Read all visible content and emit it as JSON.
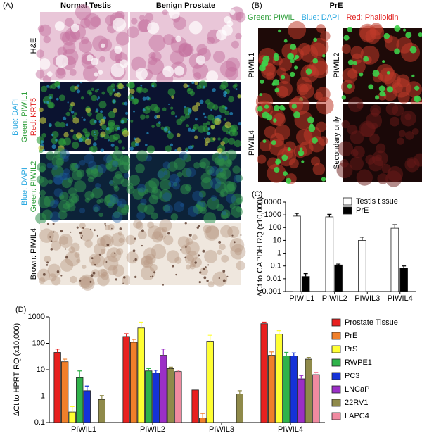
{
  "panel_labels": [
    "(A)",
    "(B)",
    "(C)",
    "(D)"
  ],
  "panel_a": {
    "columns": [
      "Normal Testis",
      "Benign Prostate"
    ],
    "rows": [
      {
        "lines": [
          "H&E"
        ],
        "colors": [
          "#000000"
        ]
      },
      {
        "lines": [
          "Blue: DAPI",
          "Green: PIWIL1",
          "Red: KRT5"
        ],
        "colors": [
          "#29a8e0",
          "#2e9e3a",
          "#e0201f"
        ]
      },
      {
        "lines": [
          "Blue: DAPI",
          "Green: PIWIL2"
        ],
        "colors": [
          "#29a8e0",
          "#2e9e3a"
        ]
      },
      {
        "lines": [
          "Brown: PIWIL4"
        ],
        "colors": [
          "#000000"
        ]
      }
    ]
  },
  "panel_b": {
    "title": "PrE",
    "stains": [
      {
        "text": "Green: PIWIL",
        "color": "#2e9e3a"
      },
      {
        "text": "Blue: DAPI",
        "color": "#29a8e0"
      },
      {
        "text": "Red: Phalloidin",
        "color": "#e0201f"
      }
    ],
    "images": [
      "PIWIL1",
      "PIWIL2",
      "PIWIL4",
      "Secondary only"
    ]
  },
  "chart_data": [
    {
      "type": "bar",
      "y_label": "ΔCt to GAPDH RQ (x10,000)",
      "log_scale": true,
      "categories": [
        "PIWIL1",
        "PIWIL2",
        "PIWIL3",
        "PIWIL4"
      ],
      "series": [
        {
          "name": "Testis tissue",
          "color": "#ffffff",
          "values": [
            800,
            700,
            10,
            90
          ],
          "errors": [
            500,
            400,
            8,
            80
          ]
        },
        {
          "name": "PrE",
          "color": "#000000",
          "values": [
            0.015,
            0.12,
            null,
            0.07
          ],
          "errors": [
            0.01,
            0.02,
            null,
            0.03
          ]
        }
      ],
      "ylim": [
        0.001,
        10000
      ],
      "yticks": [
        0.001,
        0.01,
        0.1,
        1,
        10,
        100,
        1000,
        10000
      ],
      "legend": "top-right"
    },
    {
      "type": "bar",
      "y_label": "ΔCt to HPRT RQ (x10,000)",
      "log_scale": true,
      "categories": [
        "PIWIL1",
        "PIWIL2",
        "PIWIL3",
        "PIWIL4"
      ],
      "series": [
        {
          "name": "Prostate Tissue",
          "color": "#e8201f",
          "values": [
            45,
            180,
            1.7,
            550
          ],
          "errors": [
            15,
            50,
            null,
            80
          ]
        },
        {
          "name": "PrE",
          "color": "#f07f2a",
          "values": [
            20,
            110,
            0.15,
            35
          ],
          "errors": [
            5,
            30,
            0.07,
            12
          ]
        },
        {
          "name": "PrS",
          "color": "#ffff33",
          "values": [
            0.25,
            380,
            120,
            220
          ],
          "errors": [
            0.15,
            250,
            80,
            80
          ]
        },
        {
          "name": "RWPE1",
          "color": "#2fb34a",
          "values": [
            5,
            9,
            null,
            33
          ],
          "errors": [
            4,
            2,
            null,
            12
          ]
        },
        {
          "name": "PC3",
          "color": "#1432d8",
          "values": [
            1.6,
            7.5,
            null,
            33
          ],
          "errors": [
            0.8,
            2,
            null,
            10
          ]
        },
        {
          "name": "LNCaP",
          "color": "#9b2fc6",
          "values": [
            null,
            35,
            null,
            4.5
          ],
          "errors": [
            null,
            25,
            null,
            1.5
          ]
        },
        {
          "name": "22RV1",
          "color": "#8f8a4a",
          "values": [
            0.75,
            11,
            1.2,
            25
          ],
          "errors": [
            0.3,
            1.5,
            0.4,
            4
          ]
        },
        {
          "name": "LAPC4",
          "color": "#f08aa0",
          "values": [
            null,
            8.5,
            null,
            6.5
          ],
          "errors": [
            null,
            1,
            null,
            1.5
          ]
        }
      ],
      "ylim": [
        0.1,
        1000
      ],
      "yticks": [
        0.1,
        1,
        10,
        100,
        1000
      ],
      "legend": "right"
    }
  ]
}
